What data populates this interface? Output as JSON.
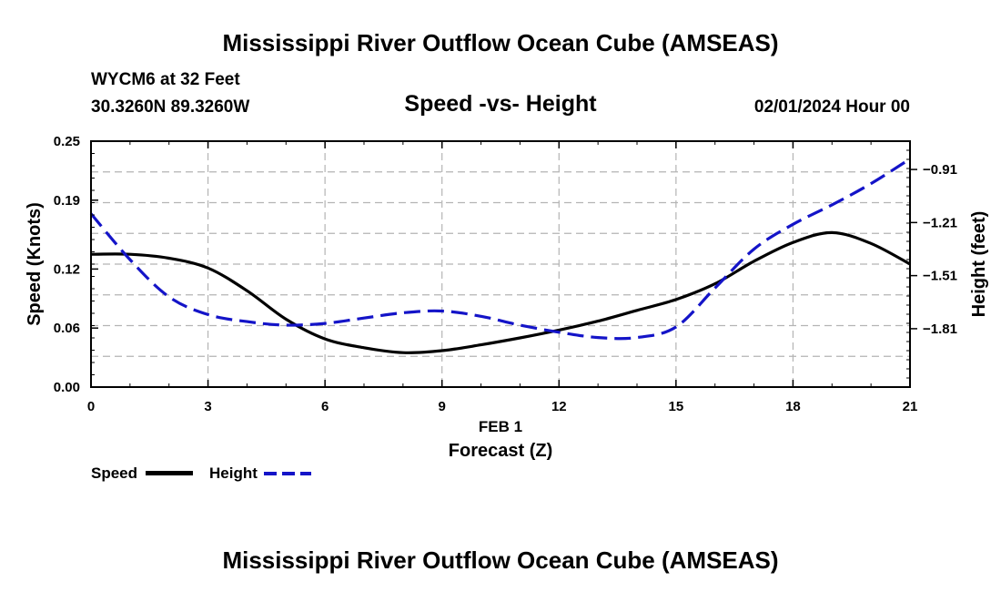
{
  "page": {
    "title_top": "Mississippi River Outflow Ocean Cube (AMSEAS)",
    "title_bottom": "Mississippi River Outflow Ocean Cube (AMSEAS)",
    "station": "WYCM6 at 32 Feet",
    "coords": "30.3260N  89.3260W",
    "subtitle": "Speed -vs- Height",
    "datetime": "02/01/2024 Hour 00"
  },
  "legend": {
    "speed_label": "Speed",
    "height_label": "Height"
  },
  "colors": {
    "speed": "#000000",
    "height": "#1414c8",
    "grid": "#b4b4b4"
  },
  "chart_data": {
    "type": "line",
    "xlabel": "Forecast (Z)",
    "xdate": "FEB 1",
    "ylabel_left": "Speed (Knots)",
    "ylabel_right": "Height (feet)",
    "xlim": [
      0,
      21
    ],
    "ylim_left": [
      0,
      0.25
    ],
    "ylim_right": [
      -2.14,
      -0.75
    ],
    "x_ticks": [
      "0",
      "3",
      "6",
      "9",
      "12",
      "15",
      "18",
      "21"
    ],
    "y_left_ticks": [
      "0.00",
      "0.06",
      "0.12",
      "0.19",
      "0.25"
    ],
    "y_right_ticks": [
      "-0.91",
      "-1.21",
      "-1.51",
      "-1.81"
    ],
    "series": [
      {
        "name": "Speed",
        "axis": "left",
        "style": "solid",
        "x": [
          0,
          1,
          2,
          3,
          4,
          5,
          6,
          7,
          8,
          9,
          10,
          11,
          12,
          13,
          14,
          15,
          16,
          17,
          18,
          19,
          20,
          21
        ],
        "values": [
          0.135,
          0.135,
          0.131,
          0.121,
          0.098,
          0.069,
          0.049,
          0.04,
          0.035,
          0.037,
          0.043,
          0.05,
          0.058,
          0.067,
          0.078,
          0.089,
          0.105,
          0.128,
          0.147,
          0.157,
          0.146,
          0.125
        ]
      },
      {
        "name": "Height",
        "axis": "right",
        "style": "dashed",
        "x": [
          0,
          1,
          2,
          3,
          4,
          5,
          6,
          7,
          8,
          9,
          10,
          11,
          12,
          13,
          14,
          15,
          16,
          17,
          18,
          19,
          20,
          21
        ],
        "values": [
          -1.16,
          -1.42,
          -1.63,
          -1.73,
          -1.77,
          -1.79,
          -1.78,
          -1.75,
          -1.72,
          -1.71,
          -1.74,
          -1.79,
          -1.83,
          -1.86,
          -1.86,
          -1.8,
          -1.58,
          -1.36,
          -1.22,
          -1.11,
          -0.99,
          -0.85
        ]
      }
    ]
  }
}
